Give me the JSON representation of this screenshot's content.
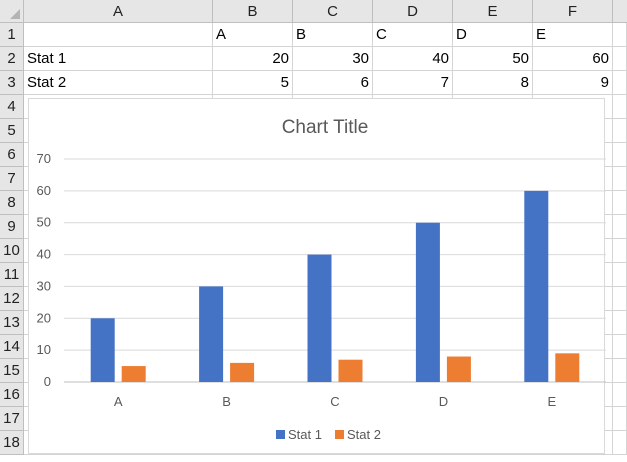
{
  "columns": [
    "A",
    "B",
    "C",
    "D",
    "E",
    "F"
  ],
  "rows": [
    "1",
    "2",
    "3",
    "4",
    "5",
    "6",
    "7",
    "8",
    "9",
    "10",
    "11",
    "12",
    "13",
    "14",
    "15",
    "16",
    "17",
    "18"
  ],
  "cells": {
    "row1": [
      "",
      "A",
      "B",
      "C",
      "D",
      "E"
    ],
    "row2": [
      "Stat 1",
      "20",
      "30",
      "40",
      "50",
      "60"
    ],
    "row3": [
      "Stat 2",
      "5",
      "6",
      "7",
      "8",
      "9"
    ]
  },
  "chart_data": {
    "type": "bar",
    "title": "Chart Title",
    "categories": [
      "A",
      "B",
      "C",
      "D",
      "E"
    ],
    "series": [
      {
        "name": "Stat 1",
        "values": [
          20,
          30,
          40,
          50,
          60
        ],
        "color": "#4472c4"
      },
      {
        "name": "Stat 2",
        "values": [
          5,
          6,
          7,
          8,
          9
        ],
        "color": "#ed7d31"
      }
    ],
    "ylim": [
      0,
      70
    ],
    "yticks": [
      "0",
      "10",
      "20",
      "30",
      "40",
      "50",
      "60",
      "70"
    ],
    "grid": true,
    "legend": "bottom"
  }
}
